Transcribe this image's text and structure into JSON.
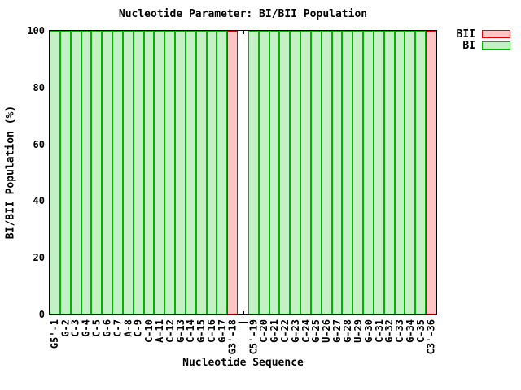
{
  "chart_data": {
    "type": "bar",
    "title": "Nucleotide Parameter: BI/BII Population",
    "xlabel": "Nucleotide Sequence",
    "ylabel": "BI/BII Population (%)",
    "ylim": [
      0,
      100
    ],
    "yticks": [
      0,
      20,
      40,
      60,
      80,
      100
    ],
    "grid": false,
    "legend_position": "top-right-outside",
    "bar_gap": 0,
    "categories": [
      "G5'-1",
      "G-2",
      "C-3",
      "G-4",
      "C-5",
      "G-6",
      "C-7",
      "A-8",
      "C-9",
      "C-10",
      "A-11",
      "C-12",
      "G-13",
      "C-14",
      "G-15",
      "C-16",
      "G-17",
      "G3'-18",
      "|",
      "C5'-19",
      "C-20",
      "G-21",
      "C-22",
      "G-23",
      "C-24",
      "G-25",
      "U-26",
      "G-27",
      "G-28",
      "U-29",
      "G-30",
      "C-31",
      "G-32",
      "C-33",
      "G-34",
      "C-35",
      "C3'-36"
    ],
    "series": [
      {
        "name": "BII",
        "fill": "#ffc4c4",
        "border": "#e60000",
        "values": [
          0,
          0,
          0,
          0,
          0,
          0,
          0,
          0,
          0,
          0,
          0,
          0,
          0,
          0,
          0,
          0,
          0,
          100,
          null,
          0,
          0,
          0,
          0,
          0,
          0,
          0,
          0,
          0,
          0,
          0,
          0,
          0,
          0,
          0,
          0,
          0,
          100
        ]
      },
      {
        "name": "BI",
        "fill": "#c5efc5",
        "border": "#00b400",
        "values": [
          100,
          100,
          100,
          100,
          100,
          100,
          100,
          100,
          100,
          100,
          100,
          100,
          100,
          100,
          100,
          100,
          100,
          0,
          null,
          100,
          100,
          100,
          100,
          100,
          100,
          100,
          100,
          100,
          100,
          100,
          100,
          100,
          100,
          100,
          100,
          100,
          0
        ]
      }
    ]
  },
  "colors": {
    "axis": "#000000",
    "background": "#ffffff",
    "text": "#000000"
  }
}
